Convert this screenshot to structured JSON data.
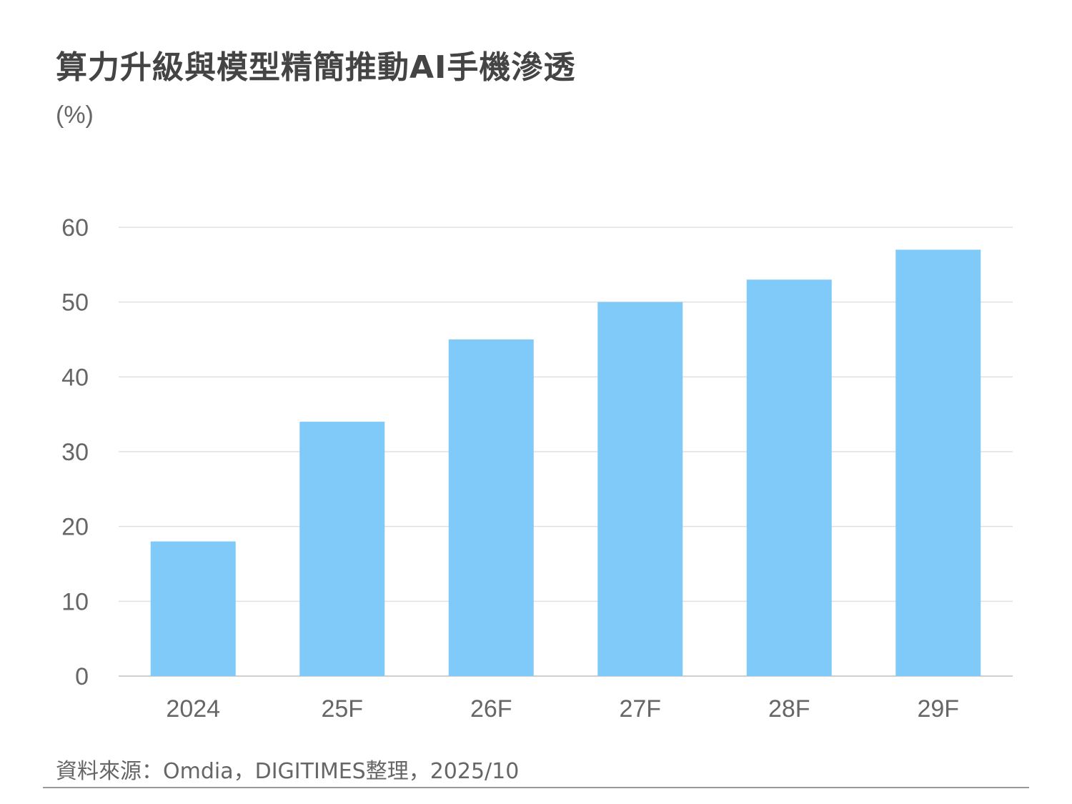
{
  "title": "算力升級與模型精簡推動AI手機滲透",
  "unit_label": "(%)",
  "source": "資料來源：Omdia，DIGITIMES整理，2025/10",
  "colors": {
    "bar": "#7fcaf9",
    "grid": "#e0e0e0",
    "axis": "#d0d0d0",
    "tick_text": "#666666"
  },
  "chart_data": {
    "type": "bar",
    "title": "算力升級與模型精簡推動AI手機滲透",
    "ylabel": "(%)",
    "xlabel": "",
    "categories": [
      "2024",
      "25F",
      "26F",
      "27F",
      "28F",
      "29F"
    ],
    "values": [
      18,
      34,
      45,
      50,
      53,
      57
    ],
    "ylim": [
      0,
      60
    ],
    "yticks": [
      0,
      10,
      20,
      30,
      40,
      50,
      60
    ],
    "grid": true,
    "legend": "none"
  }
}
